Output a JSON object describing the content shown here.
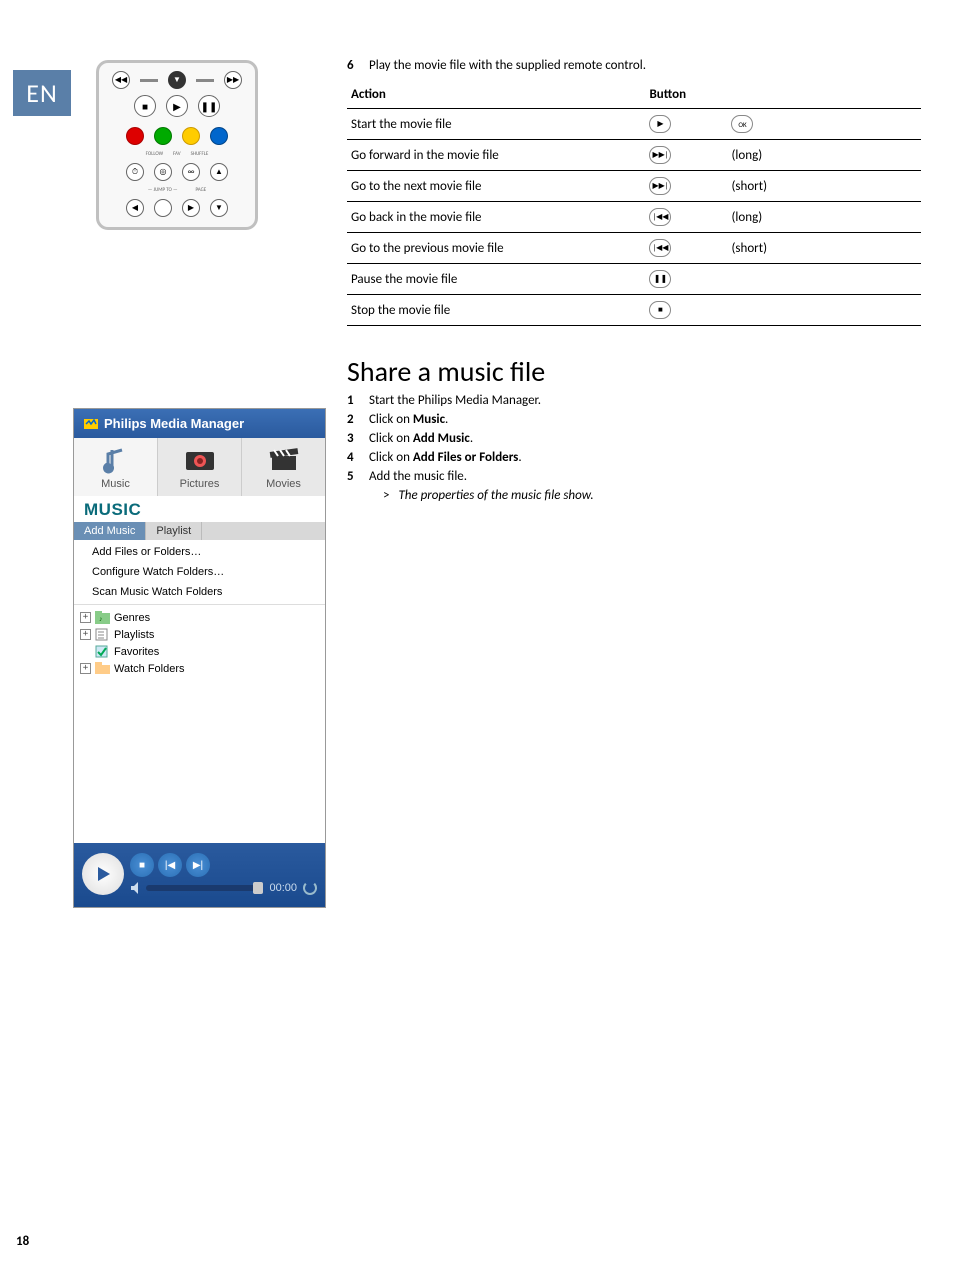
{
  "lang_tab": "EN",
  "step6": {
    "num": "6",
    "text": "Play the movie file with the supplied remote control."
  },
  "table": {
    "head": {
      "action": "Action",
      "button": "Button"
    },
    "rows": [
      {
        "action": "Start the movie file",
        "icon1": "play",
        "icon2": "ok",
        "extra": ""
      },
      {
        "action": "Go forward in the movie file",
        "icon1": "ffwd",
        "icon2": "",
        "extra": "(long)"
      },
      {
        "action": "Go to the next movie file",
        "icon1": "ffwd",
        "icon2": "",
        "extra": "(short)"
      },
      {
        "action": "Go back in the movie file",
        "icon1": "rwd",
        "icon2": "",
        "extra": "(long)"
      },
      {
        "action": "Go to the previous movie file",
        "icon1": "rwd",
        "icon2": "",
        "extra": "(short)"
      },
      {
        "action": "Pause the movie file",
        "icon1": "pause",
        "icon2": "",
        "extra": ""
      },
      {
        "action": "Stop the movie file",
        "icon1": "stop",
        "icon2": "",
        "extra": ""
      }
    ]
  },
  "share_title": "Share a music file",
  "steps": [
    {
      "num": "1",
      "text": "Start the Philips Media Manager."
    },
    {
      "num": "2",
      "pre": "Click on ",
      "bold": "Music",
      "post": "."
    },
    {
      "num": "3",
      "pre": "Click on ",
      "bold": "Add Music",
      "post": "."
    },
    {
      "num": "4",
      "pre": "Click on ",
      "bold": "Add Files or Folders",
      "post": "."
    },
    {
      "num": "5",
      "text": "Add the music file."
    }
  ],
  "sub_step": {
    "marker": ">",
    "text": "The properties of the music file show."
  },
  "pmm": {
    "title": "Philips Media Manager",
    "tabs": {
      "music": "Music",
      "pictures": "Pictures",
      "movies": "Movies"
    },
    "section": "MUSIC",
    "subtabs": {
      "add": "Add Music",
      "playlist": "Playlist"
    },
    "menu": {
      "add_files": "Add Files or Folders…",
      "config": "Configure Watch Folders…",
      "scan": "Scan Music Watch Folders"
    },
    "tree": {
      "genres": "Genres",
      "playlists": "Playlists",
      "favorites": "Favorites",
      "watch": "Watch Folders"
    },
    "time": "00:00"
  },
  "page_number": "18",
  "colors": {
    "lang_bg": "#5a7fa8",
    "pmm_title_bg": "#2a5a9e",
    "music_hdr": "#0a6b7a"
  },
  "icons": {
    "play": "▶",
    "ok": "OK",
    "ffwd": "▶▶|",
    "rwd": "|◀◀",
    "pause": "❚❚",
    "stop": "■"
  }
}
